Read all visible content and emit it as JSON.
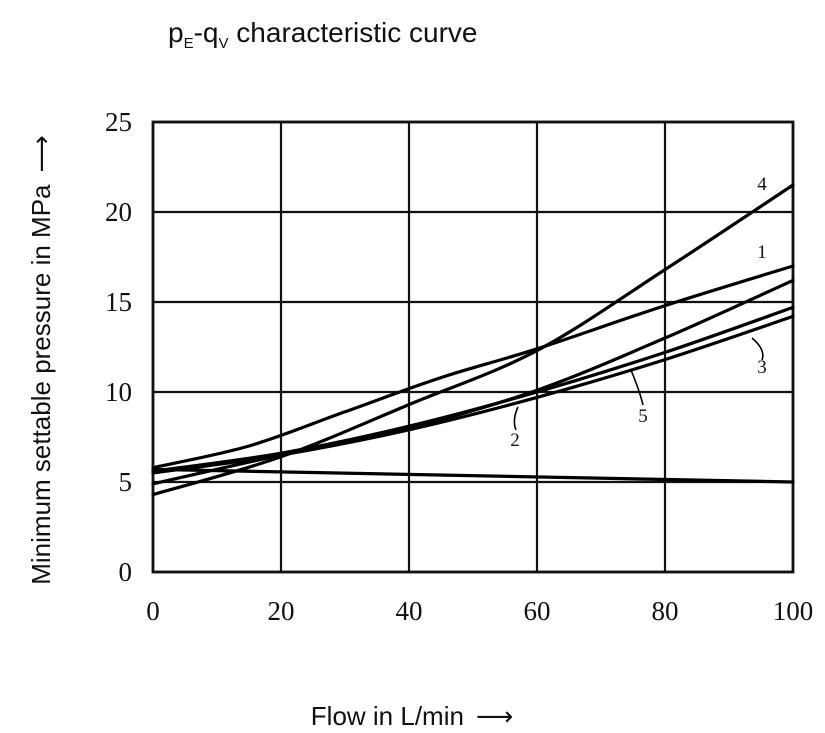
{
  "chart_data": {
    "type": "line",
    "title": {
      "p": "p",
      "p_sub": "E",
      "dash": "-",
      "q": "q",
      "q_sub": "V",
      "rest": " characteristic curve"
    },
    "xlabel": "Flow in L/min",
    "ylabel": "Minimum settable pressure in MPa",
    "arrow": "⟶",
    "xlim": [
      0,
      100
    ],
    "ylim": [
      0,
      25
    ],
    "x_ticks": [
      "0",
      "20",
      "40",
      "60",
      "80",
      "100"
    ],
    "y_ticks": [
      "0",
      "5",
      "10",
      "15",
      "20",
      "25"
    ],
    "grid": true,
    "series": [
      {
        "name": "1",
        "x": [
          0,
          15,
          30,
          45,
          60,
          80,
          100
        ],
        "y": [
          5.8,
          7.0,
          8.9,
          10.8,
          12.4,
          14.8,
          17.0
        ]
      },
      {
        "name": "2",
        "x": [
          0,
          20,
          40,
          60,
          80,
          100
        ],
        "y": [
          4.9,
          6.5,
          8.0,
          10.1,
          13.0,
          16.2
        ]
      },
      {
        "name": "3",
        "x": [
          0,
          20,
          40,
          60,
          80,
          100
        ],
        "y": [
          5.5,
          6.5,
          7.9,
          9.7,
          11.8,
          14.2
        ]
      },
      {
        "name": "4",
        "x": [
          0,
          20,
          40,
          60,
          80,
          100
        ],
        "y": [
          4.3,
          6.4,
          9.3,
          12.3,
          16.8,
          21.5
        ]
      },
      {
        "name": "5",
        "x": [
          0,
          20,
          40,
          60,
          80,
          100
        ],
        "y": [
          5.6,
          6.6,
          8.1,
          10.0,
          12.2,
          14.7
        ]
      }
    ],
    "extra_lines": [
      {
        "x": [
          0,
          100
        ],
        "y": [
          5.7,
          5.0
        ]
      }
    ]
  }
}
